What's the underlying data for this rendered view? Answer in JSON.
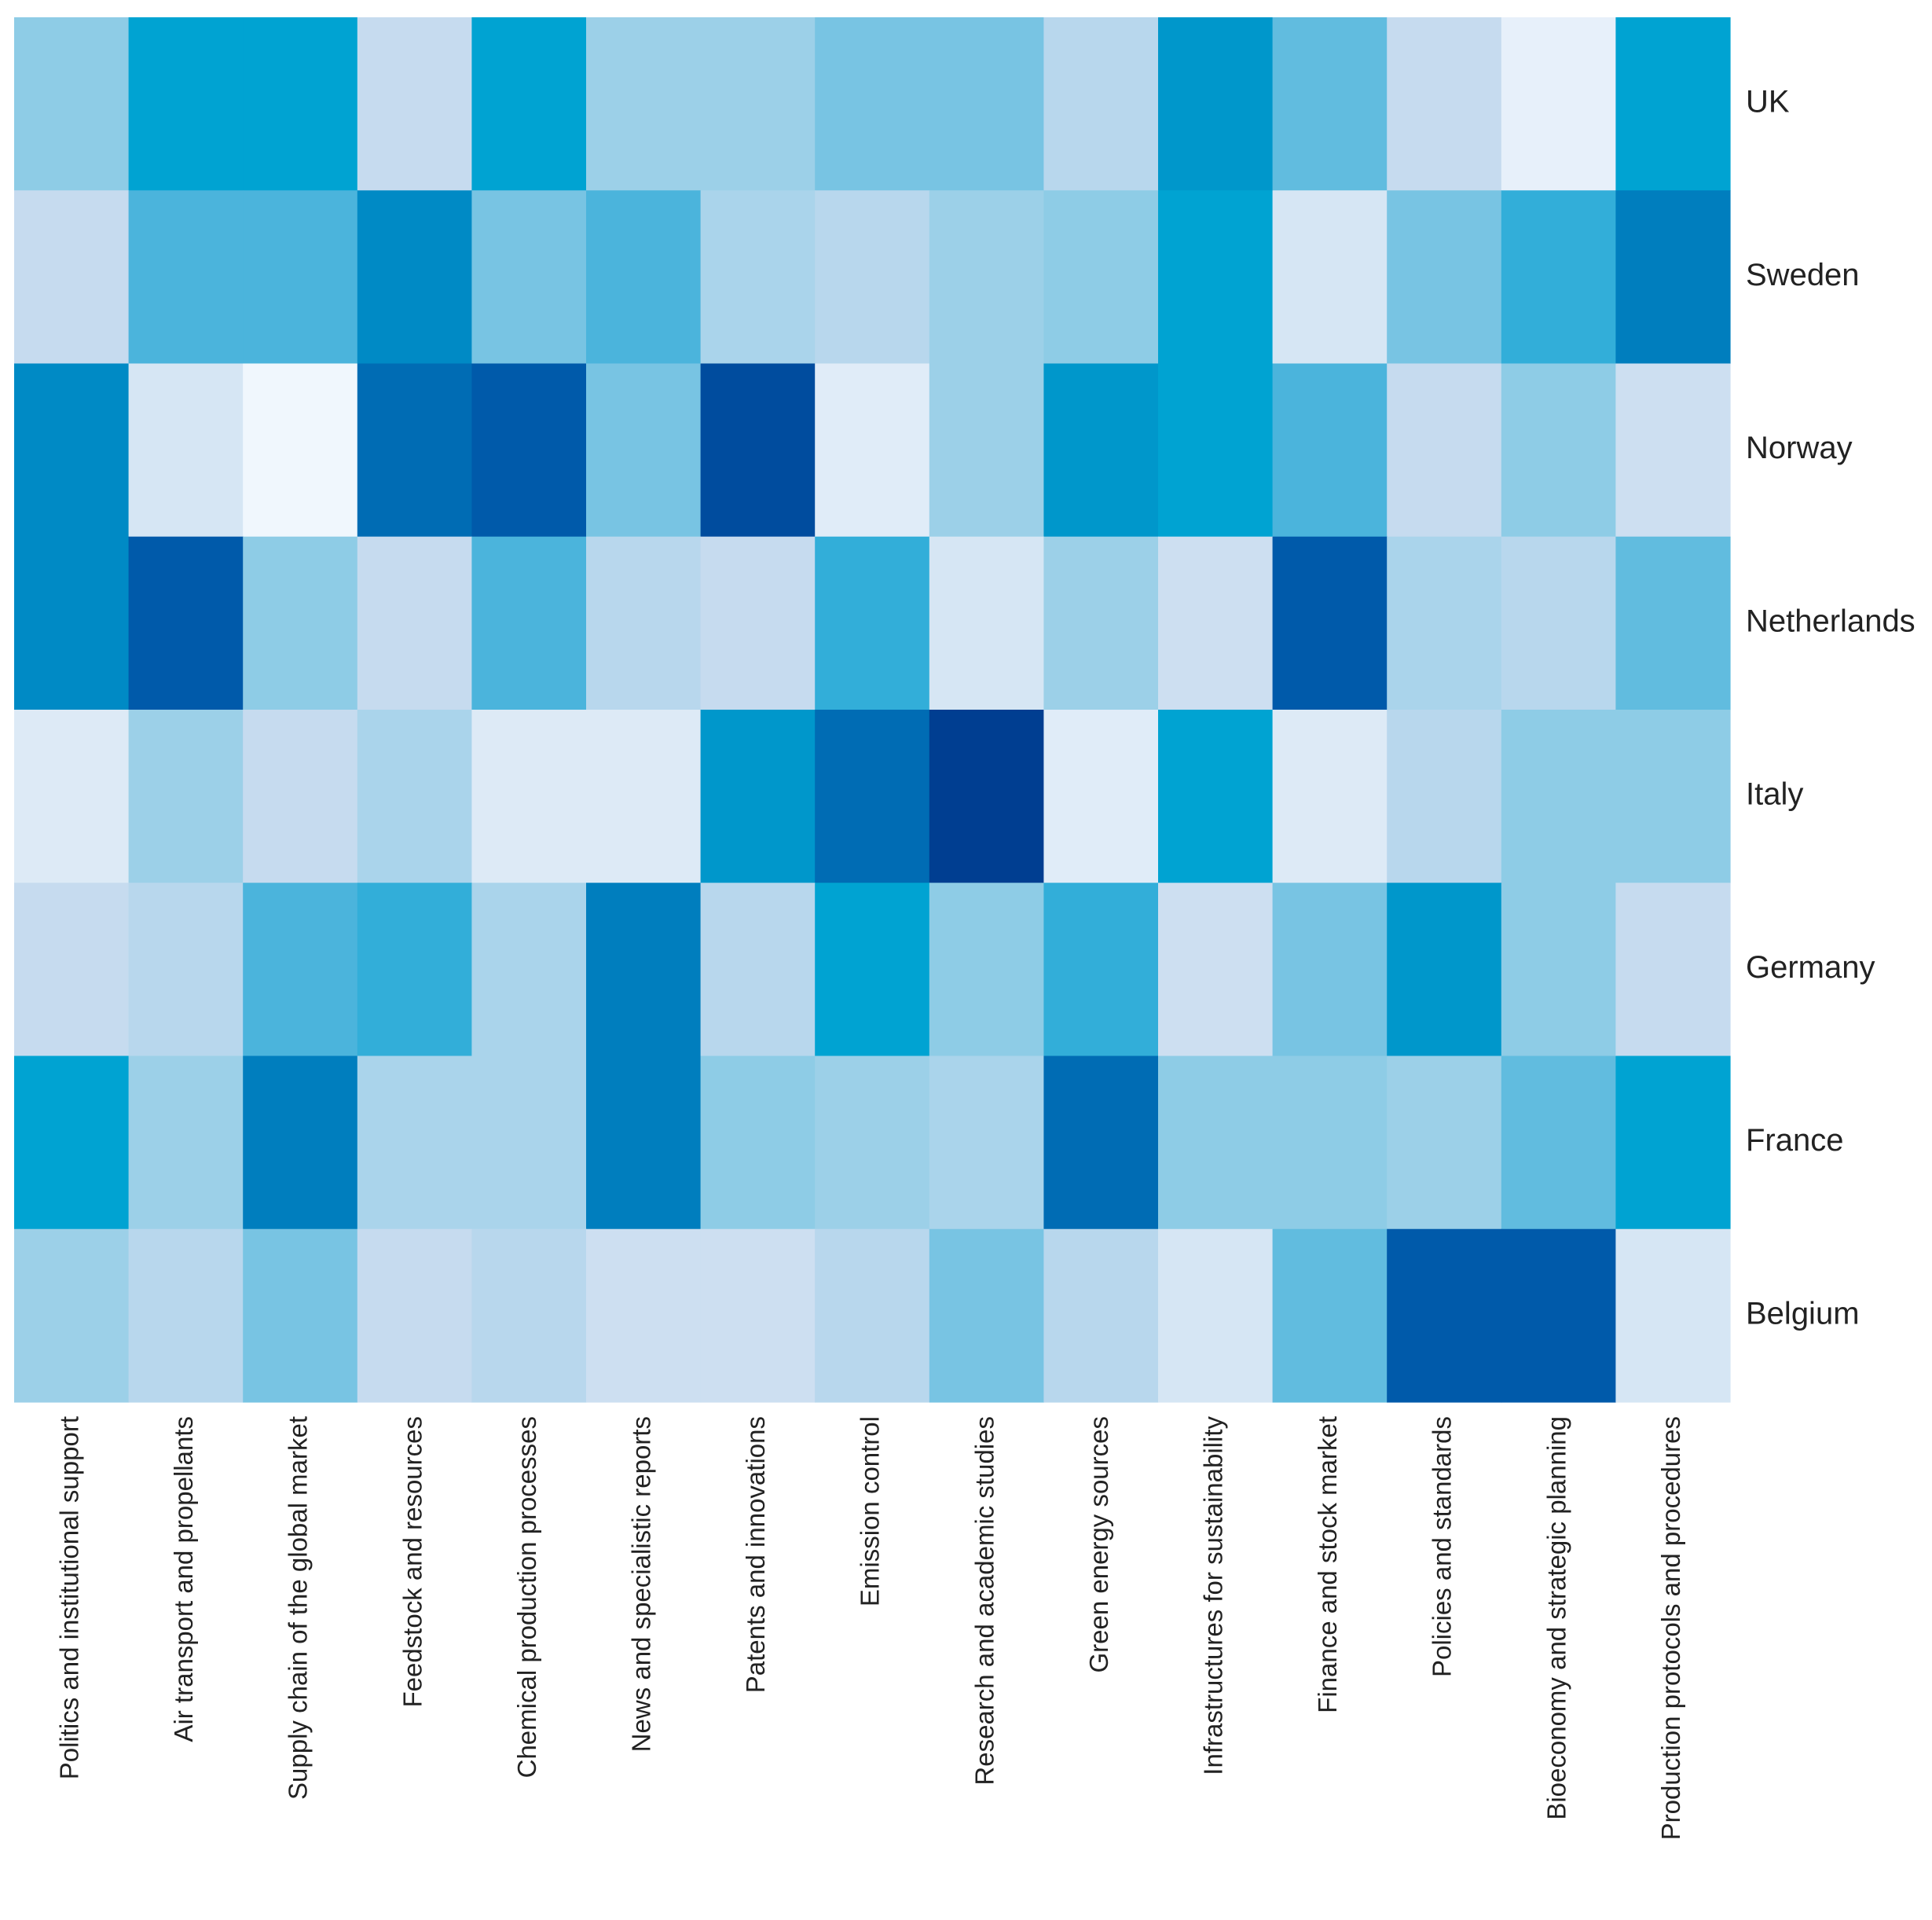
{
  "chart_data": {
    "type": "heatmap",
    "title": "",
    "xlabel": "",
    "ylabel": "",
    "color_scale": "intensity 0 (white) to 10 (dark blue)",
    "rows": [
      "UK",
      "Sweden",
      "Norway",
      "Netherlands",
      "Italy",
      "Germany",
      "France",
      "Belgium"
    ],
    "columns": [
      "Politics and institutional support",
      "Air transport and propellants",
      "Supply chain of the global market",
      "Feedstock and resources",
      "Chemical production processes",
      "News and specialistic reports",
      "Patents and innovations",
      "Emission control",
      "Research and academic studies",
      "Green energy sources",
      "Infrastructures for sustainability",
      "Finance and stock market",
      "Policies and standards",
      "Bioeconomy and strategic planning",
      "Production protocols and procedures"
    ],
    "values": [
      [
        3.5,
        6.5,
        6.5,
        1.5,
        6.5,
        3.0,
        3.0,
        4.0,
        4.0,
        2.0,
        7.0,
        4.5,
        1.5,
        0.5,
        6.5
      ],
      [
        1.5,
        5.0,
        5.0,
        7.5,
        4.0,
        5.0,
        2.5,
        2.0,
        3.0,
        3.5,
        6.5,
        1.0,
        4.0,
        5.5,
        8.0
      ],
      [
        7.5,
        1.0,
        0.2,
        8.5,
        9.0,
        4.0,
        9.5,
        0.7,
        3.0,
        7.0,
        6.5,
        5.0,
        1.5,
        3.5,
        1.3
      ],
      [
        7.5,
        9.0,
        3.5,
        1.5,
        5.0,
        2.0,
        1.5,
        5.5,
        1.0,
        3.0,
        1.3,
        9.0,
        2.5,
        2.0,
        4.5
      ],
      [
        0.8,
        3.0,
        1.5,
        2.5,
        0.8,
        0.8,
        7.0,
        8.5,
        10.0,
        0.7,
        6.5,
        0.8,
        2.0,
        3.5,
        3.5
      ],
      [
        1.5,
        2.0,
        5.0,
        5.5,
        2.5,
        8.0,
        2.0,
        6.5,
        3.5,
        5.5,
        1.3,
        4.0,
        7.0,
        3.5,
        1.5
      ],
      [
        6.5,
        3.0,
        8.0,
        2.5,
        2.5,
        8.0,
        3.5,
        3.0,
        2.5,
        8.5,
        3.5,
        3.5,
        3.0,
        4.5,
        6.5
      ],
      [
        3.0,
        2.0,
        4.0,
        1.5,
        2.0,
        1.3,
        1.3,
        2.0,
        4.0,
        2.0,
        1.0,
        4.5,
        9.0,
        9.0,
        1.0
      ]
    ]
  }
}
